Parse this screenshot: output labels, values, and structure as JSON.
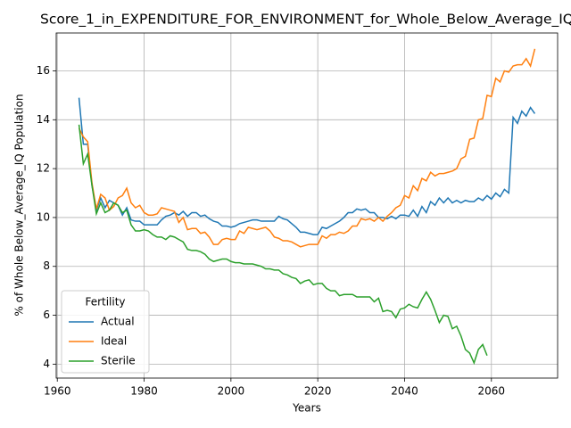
{
  "chart_data": {
    "type": "line",
    "title": "Score_1_in_EXPENDITURE_FOR_ENVIRONMENT_for_Whole_Below_Average_IQ",
    "xlabel": "Years",
    "ylabel": "% of Whole Below_Average_IQ Population",
    "legend_title": "Fertility",
    "legend": "lower left",
    "grid": true,
    "xlim": [
      1959.75,
      2075.25
    ],
    "ylim": [
      3.43,
      17.55
    ],
    "xticks": [
      1960,
      1980,
      2000,
      2020,
      2040,
      2060
    ],
    "yticks": [
      4,
      6,
      8,
      10,
      12,
      14,
      16
    ],
    "x": [
      1965,
      1966,
      1967,
      1968,
      1969,
      1970,
      1971,
      1972,
      1973,
      1974,
      1975,
      1976,
      1977,
      1978,
      1979,
      1980,
      1981,
      1982,
      1983,
      1984,
      1985,
      1986,
      1987,
      1988,
      1989,
      1990,
      1991,
      1992,
      1993,
      1994,
      1995,
      1996,
      1997,
      1998,
      1999,
      2000,
      2001,
      2002,
      2003,
      2004,
      2005,
      2006,
      2007,
      2008,
      2009,
      2010,
      2011,
      2012,
      2013,
      2014,
      2015,
      2016,
      2017,
      2018,
      2019,
      2020,
      2021,
      2022,
      2023,
      2024,
      2025,
      2026,
      2027,
      2028,
      2029,
      2030,
      2031,
      2032,
      2033,
      2034,
      2035,
      2036,
      2037,
      2038,
      2039,
      2040,
      2041,
      2042,
      2043,
      2044,
      2045,
      2046,
      2047,
      2048,
      2049,
      2050,
      2051,
      2052,
      2053,
      2054,
      2055,
      2056,
      2057,
      2058,
      2059,
      2060,
      2061,
      2062,
      2063,
      2064,
      2065,
      2066,
      2067,
      2068,
      2069,
      2070
    ],
    "series": [
      {
        "name": "Actual",
        "color": "#1f77b4",
        "values": [
          14.9,
          13.0,
          13.0,
          11.3,
          10.3,
          10.8,
          10.4,
          10.7,
          10.6,
          10.5,
          10.1,
          10.4,
          9.9,
          9.85,
          9.85,
          9.7,
          9.7,
          9.7,
          9.7,
          9.9,
          10.05,
          10.1,
          10.2,
          10.1,
          10.25,
          10.05,
          10.2,
          10.2,
          10.05,
          10.1,
          9.95,
          9.85,
          9.8,
          9.65,
          9.65,
          9.6,
          9.65,
          9.75,
          9.8,
          9.85,
          9.9,
          9.9,
          9.85,
          9.85,
          9.85,
          9.85,
          10.05,
          9.95,
          9.9,
          9.75,
          9.6,
          9.4,
          9.4,
          9.35,
          9.3,
          9.3,
          9.6,
          9.55,
          9.65,
          9.75,
          9.85,
          10.0,
          10.2,
          10.2,
          10.35,
          10.3,
          10.35,
          10.2,
          10.2,
          10.0,
          10.0,
          9.95,
          10.05,
          9.95,
          10.1,
          10.1,
          10.05,
          10.3,
          10.05,
          10.45,
          10.2,
          10.65,
          10.5,
          10.8,
          10.6,
          10.8,
          10.6,
          10.7,
          10.6,
          10.7,
          10.65,
          10.65,
          10.8,
          10.7,
          10.9,
          10.75,
          11.0,
          10.85,
          11.15,
          11.0,
          14.1,
          13.85,
          14.35,
          14.15,
          14.5,
          14.25
        ]
      },
      {
        "name": "Ideal",
        "color": "#ff7f0e",
        "values": [
          13.65,
          13.3,
          13.1,
          11.4,
          10.35,
          10.95,
          10.8,
          10.3,
          10.45,
          10.8,
          10.9,
          11.2,
          10.6,
          10.4,
          10.5,
          10.2,
          10.1,
          10.1,
          10.15,
          10.4,
          10.35,
          10.3,
          10.25,
          9.8,
          10.0,
          9.5,
          9.55,
          9.55,
          9.35,
          9.4,
          9.2,
          8.9,
          8.9,
          9.1,
          9.15,
          9.1,
          9.1,
          9.45,
          9.35,
          9.6,
          9.55,
          9.5,
          9.55,
          9.6,
          9.45,
          9.2,
          9.15,
          9.05,
          9.05,
          9.0,
          8.9,
          8.8,
          8.85,
          8.9,
          8.9,
          8.9,
          9.25,
          9.15,
          9.3,
          9.3,
          9.4,
          9.35,
          9.45,
          9.65,
          9.65,
          9.95,
          9.9,
          9.95,
          9.85,
          10.0,
          9.85,
          10.05,
          10.2,
          10.4,
          10.5,
          10.9,
          10.8,
          11.3,
          11.1,
          11.6,
          11.5,
          11.85,
          11.7,
          11.8,
          11.8,
          11.85,
          11.9,
          12.0,
          12.4,
          12.5,
          13.2,
          13.25,
          14.0,
          14.05,
          15.0,
          14.95,
          15.7,
          15.55,
          16.0,
          15.95,
          16.2,
          16.25,
          16.25,
          16.5,
          16.2,
          16.9
        ]
      },
      {
        "name": "Sterile",
        "color": "#2ca02c",
        "values": [
          13.8,
          12.2,
          12.6,
          11.3,
          10.15,
          10.6,
          10.2,
          10.3,
          10.6,
          10.5,
          10.2,
          10.3,
          9.7,
          9.45,
          9.45,
          9.5,
          9.45,
          9.3,
          9.2,
          9.2,
          9.1,
          9.25,
          9.2,
          9.1,
          9.0,
          8.7,
          8.65,
          8.65,
          8.6,
          8.5,
          8.3,
          8.2,
          8.25,
          8.3,
          8.3,
          8.2,
          8.15,
          8.15,
          8.1,
          8.1,
          8.1,
          8.05,
          8.0,
          7.9,
          7.9,
          7.85,
          7.85,
          7.7,
          7.65,
          7.55,
          7.5,
          7.3,
          7.4,
          7.45,
          7.25,
          7.3,
          7.3,
          7.1,
          7.0,
          7.0,
          6.8,
          6.85,
          6.85,
          6.85,
          6.75,
          6.75,
          6.75,
          6.75,
          6.55,
          6.7,
          6.15,
          6.2,
          6.15,
          5.9,
          6.25,
          6.3,
          6.45,
          6.35,
          6.3,
          6.65,
          6.95,
          6.65,
          6.2,
          5.7,
          6.0,
          5.95,
          5.45,
          5.55,
          5.15,
          4.6,
          4.45,
          4.05,
          4.6,
          4.8,
          4.35,
          null,
          null,
          null,
          null,
          null,
          null,
          null,
          null,
          null,
          null,
          null
        ]
      }
    ]
  }
}
